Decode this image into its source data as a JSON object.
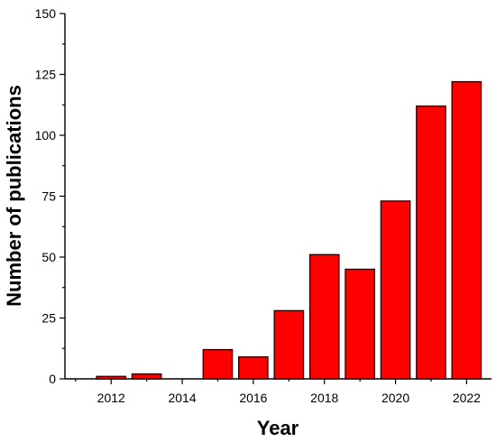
{
  "chart_data": {
    "type": "bar",
    "title": "",
    "xlabel": "Year",
    "ylabel": "Number of publications",
    "x": [
      2012,
      2013,
      2014,
      2015,
      2016,
      2017,
      2018,
      2019,
      2020,
      2021,
      2022
    ],
    "values": [
      1,
      2,
      0,
      12,
      9,
      28,
      51,
      45,
      73,
      112,
      122
    ],
    "xlim": [
      2010.7,
      2022.7
    ],
    "ylim": [
      0,
      150
    ],
    "x_ticks": [
      "2012",
      "2014",
      "2016",
      "2018",
      "2020",
      "2022"
    ],
    "y_ticks": [
      "0",
      "25",
      "50",
      "75",
      "100",
      "125",
      "150"
    ],
    "bar_color": "#ff0000",
    "bar_edge_color": "#3a0000",
    "grid": false,
    "legend": "none"
  }
}
